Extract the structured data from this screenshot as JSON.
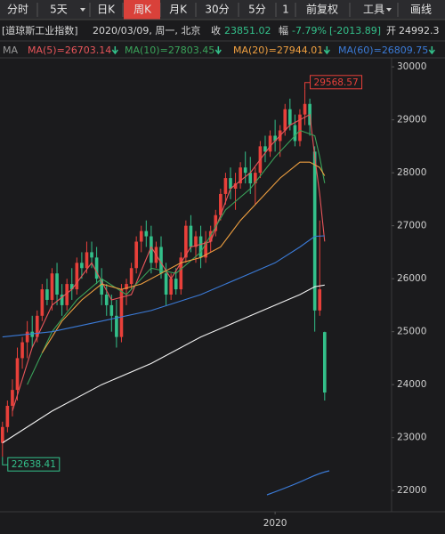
{
  "header": {
    "tabs": [
      "分时",
      "5天",
      "日K",
      "周K",
      "月K",
      "30分",
      "5分",
      "1",
      "前复权",
      "工具",
      "画线"
    ],
    "active_tab": 3,
    "name": "[道琼斯工业指数]",
    "date": "2020/03/09, 周一, 北京",
    "close_label": "收",
    "change_label": "幅",
    "change_pct": "-7.79%",
    "change_abs": "[-2013.89]",
    "open_label": "开",
    "ma_label": "MA"
  },
  "chart_data": {
    "type": "candlestick",
    "up_color": "#e8403a",
    "down_color": "#33c08a",
    "open": [
      22900,
      23200,
      23600,
      23900,
      24500,
      24800,
      25000,
      24900,
      25300,
      25800,
      25600,
      26100,
      25700,
      25500,
      25900,
      25800,
      26300,
      26200,
      26500,
      26400,
      26000,
      25700,
      25500,
      25300,
      24900,
      25800,
      25900,
      26200,
      26700,
      26900,
      26800,
      26300,
      26600,
      26100,
      25700,
      26000,
      25800,
      26400,
      27000,
      26600,
      26800,
      26400,
      26700,
      26900,
      27200,
      27600,
      27900,
      27700,
      27800,
      28100,
      28000,
      27800,
      28000,
      28500,
      28400,
      28700,
      28600,
      28800,
      29200,
      28900,
      28600,
      29100,
      29300,
      28400,
      25400,
      24992.3
    ],
    "high": [
      23300,
      23700,
      24100,
      24700,
      24900,
      25200,
      25300,
      25400,
      25900,
      26000,
      26200,
      26300,
      25900,
      26000,
      26200,
      26400,
      26500,
      26700,
      26700,
      26600,
      26200,
      25900,
      25700,
      25600,
      25900,
      26000,
      26300,
      26800,
      27000,
      27100,
      27000,
      26700,
      26800,
      26300,
      26100,
      26200,
      26500,
      27100,
      27200,
      26900,
      27000,
      26900,
      27000,
      27300,
      27700,
      28000,
      28100,
      28000,
      28200,
      28400,
      28300,
      28100,
      28600,
      28700,
      28800,
      29000,
      28900,
      29300,
      29400,
      29100,
      29200,
      29568.57,
      29400,
      28500,
      27100,
      25000
    ],
    "low": [
      22638.41,
      23100,
      23400,
      23700,
      24300,
      24500,
      24700,
      24800,
      25200,
      25500,
      25400,
      25500,
      25300,
      25400,
      25600,
      25700,
      26000,
      26100,
      26200,
      25900,
      25500,
      25300,
      25000,
      24700,
      24800,
      25500,
      25800,
      26100,
      26500,
      26600,
      26100,
      26200,
      26000,
      25500,
      25600,
      25700,
      25700,
      26300,
      26500,
      26300,
      26200,
      26300,
      26500,
      26800,
      27100,
      27400,
      27500,
      27300,
      27700,
      27800,
      27600,
      27400,
      27900,
      28200,
      28300,
      28400,
      28300,
      28700,
      28800,
      28500,
      28500,
      28900,
      28700,
      25000,
      25300,
      23700
    ],
    "close": [
      23200,
      23600,
      23900,
      24500,
      24800,
      25000,
      24900,
      25300,
      25800,
      25600,
      26100,
      25700,
      25500,
      25900,
      25800,
      26300,
      26200,
      26500,
      26400,
      26000,
      25700,
      25500,
      25300,
      24900,
      25800,
      25900,
      26200,
      26700,
      26900,
      26800,
      26300,
      26600,
      26100,
      25700,
      26000,
      25800,
      26400,
      27000,
      26600,
      26800,
      26400,
      26700,
      26900,
      27200,
      27600,
      27900,
      27700,
      27800,
      28100,
      28000,
      27800,
      28000,
      28500,
      28400,
      28700,
      28600,
      28800,
      29200,
      28900,
      28600,
      29100,
      29300,
      28900,
      25400,
      25800,
      23851.02
    ],
    "series": [
      {
        "name": "MA(5)=26703.14",
        "color": "#e8555a",
        "x": [
          2,
          6,
          10,
          14,
          18,
          22,
          26,
          30,
          34,
          38,
          42,
          46,
          50,
          54,
          58,
          62,
          63,
          64,
          65
        ],
        "values": [
          23500,
          24700,
          25500,
          25800,
          26300,
          25600,
          25700,
          26600,
          26000,
          26600,
          26700,
          27700,
          28000,
          28500,
          28900,
          29100,
          28300,
          27600,
          26703.14
        ]
      },
      {
        "name": "MA(10)=27803.45",
        "color": "#3aa35a",
        "x": [
          5,
          10,
          15,
          20,
          25,
          30,
          35,
          40,
          45,
          50,
          55,
          60,
          63,
          64,
          65
        ],
        "values": [
          24000,
          25000,
          25600,
          26000,
          25700,
          26200,
          26100,
          26500,
          27300,
          27700,
          28300,
          28800,
          28700,
          28300,
          27803.45
        ]
      },
      {
        "name": "MA(20)=27944.01",
        "color": "#f0a040",
        "x": [
          8,
          12,
          16,
          20,
          24,
          28,
          32,
          36,
          40,
          44,
          48,
          52,
          56,
          60,
          62,
          64,
          65
        ],
        "values": [
          24600,
          25200,
          25600,
          25900,
          25800,
          25900,
          26100,
          26300,
          26400,
          26600,
          27100,
          27500,
          27900,
          28200,
          28200,
          28100,
          27944.01
        ]
      },
      {
        "name": "MA(60)=26809.75",
        "color": "#3b7bd8",
        "x": [
          0,
          10,
          20,
          30,
          40,
          50,
          55,
          60,
          63,
          65
        ],
        "values": [
          24900,
          25000,
          25200,
          25400,
          25700,
          26100,
          26300,
          26600,
          26800,
          26809.75
        ]
      },
      {
        "color": "#f2f2f2",
        "x": [
          0,
          10,
          20,
          30,
          40,
          50,
          60,
          63,
          65
        ],
        "values": [
          22900,
          23500,
          24000,
          24400,
          24900,
          25300,
          25700,
          25850,
          25880
        ]
      }
    ],
    "ylim": [
      21600,
      30170
    ],
    "yticks": [
      22000,
      23000,
      24000,
      25000,
      26000,
      27000,
      28000,
      29000,
      30000
    ],
    "xlim": [
      -0.5,
      78.5
    ],
    "xticks": [
      {
        "value": 55,
        "label": "2020"
      }
    ],
    "grid": false
  }
}
